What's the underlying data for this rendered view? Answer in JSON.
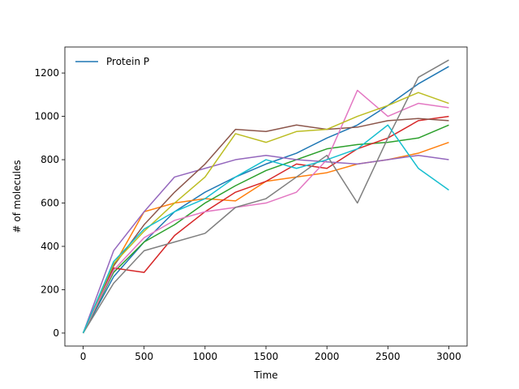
{
  "chart_data": {
    "type": "line",
    "title": "",
    "xlabel": "Time",
    "ylabel": "# of molecules",
    "xlim": [
      -150,
      3150
    ],
    "ylim": [
      -60,
      1320
    ],
    "xticks": [
      0,
      500,
      1000,
      1500,
      2000,
      2500,
      3000
    ],
    "yticks": [
      0,
      200,
      400,
      600,
      800,
      1000,
      1200
    ],
    "grid": false,
    "legend": {
      "position": "top-left",
      "entries": [
        "Protein P"
      ]
    },
    "series": [
      {
        "name": "Protein P",
        "color": "#1f77b4",
        "x": [
          0,
          250,
          500,
          750,
          1000,
          1250,
          1500,
          1750,
          2000,
          2250,
          2500,
          2750,
          3000
        ],
        "y": [
          0,
          260,
          420,
          560,
          650,
          720,
          780,
          830,
          900,
          960,
          1050,
          1150,
          1230
        ]
      },
      {
        "color": "#ff7f0e",
        "x": [
          0,
          250,
          500,
          750,
          1000,
          1250,
          1500,
          1750,
          2000,
          2250,
          2500,
          2750,
          3000
        ],
        "y": [
          0,
          310,
          560,
          600,
          620,
          610,
          700,
          720,
          740,
          780,
          800,
          830,
          880
        ]
      },
      {
        "color": "#2ca02c",
        "x": [
          0,
          250,
          500,
          750,
          1000,
          1250,
          1500,
          1750,
          2000,
          2250,
          2500,
          2750,
          3000
        ],
        "y": [
          0,
          280,
          420,
          500,
          600,
          680,
          750,
          800,
          850,
          870,
          880,
          900,
          960
        ]
      },
      {
        "color": "#d62728",
        "x": [
          0,
          250,
          500,
          750,
          1000,
          1250,
          1500,
          1750,
          2000,
          2250,
          2500,
          2750,
          3000
        ],
        "y": [
          0,
          300,
          280,
          450,
          560,
          650,
          700,
          780,
          760,
          850,
          900,
          980,
          1000
        ]
      },
      {
        "color": "#9467bd",
        "x": [
          0,
          250,
          500,
          750,
          1000,
          1250,
          1500,
          1750,
          2000,
          2250,
          2500,
          2750,
          3000
        ],
        "y": [
          0,
          380,
          560,
          720,
          760,
          800,
          820,
          800,
          790,
          780,
          800,
          820,
          800
        ]
      },
      {
        "color": "#8c564b",
        "x": [
          0,
          250,
          500,
          750,
          1000,
          1250,
          1500,
          1750,
          2000,
          2250,
          2500,
          2750,
          3000
        ],
        "y": [
          0,
          310,
          500,
          650,
          780,
          940,
          930,
          960,
          940,
          950,
          980,
          990,
          980
        ]
      },
      {
        "color": "#e377c2",
        "x": [
          0,
          250,
          500,
          750,
          1000,
          1250,
          1500,
          1750,
          2000,
          2250,
          2500,
          2750,
          3000
        ],
        "y": [
          0,
          290,
          440,
          520,
          560,
          580,
          600,
          650,
          800,
          1120,
          1000,
          1060,
          1040
        ]
      },
      {
        "color": "#7f7f7f",
        "x": [
          0,
          250,
          500,
          750,
          1000,
          1250,
          1500,
          1750,
          2000,
          2250,
          2500,
          2750,
          3000
        ],
        "y": [
          0,
          230,
          380,
          420,
          460,
          580,
          620,
          720,
          820,
          600,
          900,
          1180,
          1260
        ]
      },
      {
        "color": "#bcbd22",
        "x": [
          0,
          250,
          500,
          750,
          1000,
          1250,
          1500,
          1750,
          2000,
          2250,
          2500,
          2750,
          3000
        ],
        "y": [
          0,
          320,
          470,
          600,
          720,
          920,
          880,
          930,
          940,
          1000,
          1050,
          1110,
          1060
        ]
      },
      {
        "color": "#17becf",
        "x": [
          0,
          250,
          500,
          750,
          1000,
          1250,
          1500,
          1750,
          2000,
          2250,
          2500,
          2750,
          3000
        ],
        "y": [
          0,
          330,
          480,
          560,
          620,
          720,
          800,
          760,
          800,
          850,
          960,
          760,
          660
        ]
      }
    ]
  }
}
